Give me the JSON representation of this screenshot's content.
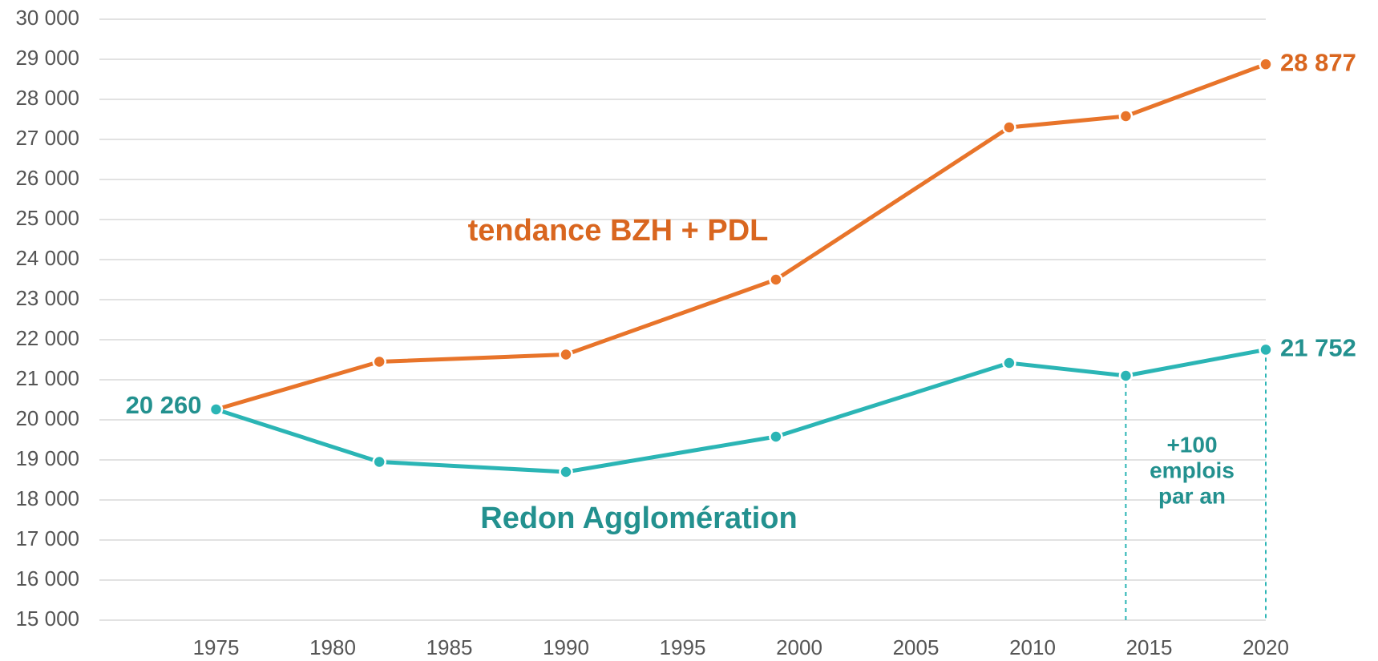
{
  "chart_data": {
    "type": "line",
    "x": [
      1975,
      1982,
      1990,
      1999,
      2009,
      2014,
      2020
    ],
    "series": [
      {
        "name": "tendance BZH + PDL",
        "color": "#e8742a",
        "label_color": "#d9661f",
        "values": [
          20260,
          21450,
          21630,
          23500,
          27300,
          27580,
          28877
        ],
        "value_labels": [
          null,
          null,
          null,
          null,
          null,
          null,
          "28 877"
        ]
      },
      {
        "name": "Redon Agglomération",
        "color": "#2bb5b5",
        "label_color": "#23918f",
        "values": [
          20260,
          18950,
          18700,
          19580,
          21420,
          21100,
          21752
        ],
        "value_labels": [
          "20 260",
          null,
          null,
          null,
          null,
          null,
          "21 752"
        ]
      }
    ],
    "annotation": [
      "+100",
      "emplois",
      "par an"
    ],
    "xlim": [
      1970,
      2020
    ],
    "xticks": [
      1975,
      1980,
      1985,
      1990,
      1995,
      2000,
      2005,
      2010,
      2015,
      2020
    ],
    "ylim": [
      15000,
      30000
    ],
    "yticks": [
      {
        "value": 15000,
        "label": "15 000"
      },
      {
        "value": 16000,
        "label": "16 000"
      },
      {
        "value": 17000,
        "label": "17 000"
      },
      {
        "value": 18000,
        "label": "18 000"
      },
      {
        "value": 19000,
        "label": "19 000"
      },
      {
        "value": 20000,
        "label": "20 000"
      },
      {
        "value": 21000,
        "label": "21 000"
      },
      {
        "value": 22000,
        "label": "22 000"
      },
      {
        "value": 23000,
        "label": "23 000"
      },
      {
        "value": 24000,
        "label": "24 000"
      },
      {
        "value": 25000,
        "label": "25 000"
      },
      {
        "value": 26000,
        "label": "26 000"
      },
      {
        "value": 27000,
        "label": "27 000"
      },
      {
        "value": 28000,
        "label": "28 000"
      },
      {
        "value": 29000,
        "label": "29 000"
      },
      {
        "value": 30000,
        "label": "30 000"
      }
    ],
    "grid": true
  }
}
